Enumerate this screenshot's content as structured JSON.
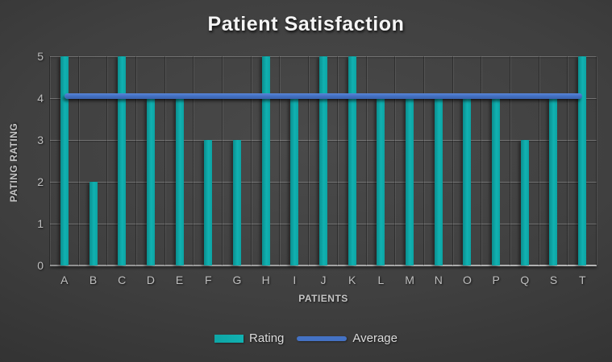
{
  "chart_data": {
    "type": "bar",
    "title": "Patient Satisfaction",
    "categories": [
      "A",
      "B",
      "C",
      "D",
      "E",
      "F",
      "G",
      "H",
      "I",
      "J",
      "K",
      "L",
      "M",
      "N",
      "O",
      "P",
      "Q",
      "S",
      "T"
    ],
    "series": [
      {
        "name": "Rating",
        "type": "bar",
        "color": "#0ea6a6",
        "values": [
          5,
          2,
          5,
          4,
          4,
          3,
          3,
          5,
          4,
          5,
          5,
          4,
          4,
          4,
          4,
          4,
          3,
          4,
          5
        ]
      },
      {
        "name": "Average",
        "type": "line",
        "color": "#4472c4",
        "value": 4.05
      }
    ],
    "xlabel": "PATIENTS",
    "ylabel": "PATING RATING",
    "ylim": [
      0,
      5
    ],
    "yticks": [
      0,
      1,
      2,
      3,
      4,
      5
    ],
    "grid": "horizontal-and-vertical",
    "legend_position": "bottom",
    "theme": {
      "background": "#3f3f3f",
      "text": "#bfbfbf",
      "title_color": "#f5f5f5"
    }
  },
  "legend": {
    "items": [
      {
        "label": "Rating",
        "swatch": "bar",
        "color": "#0ea6a6"
      },
      {
        "label": "Average",
        "swatch": "line",
        "color": "#4472c4"
      }
    ]
  }
}
